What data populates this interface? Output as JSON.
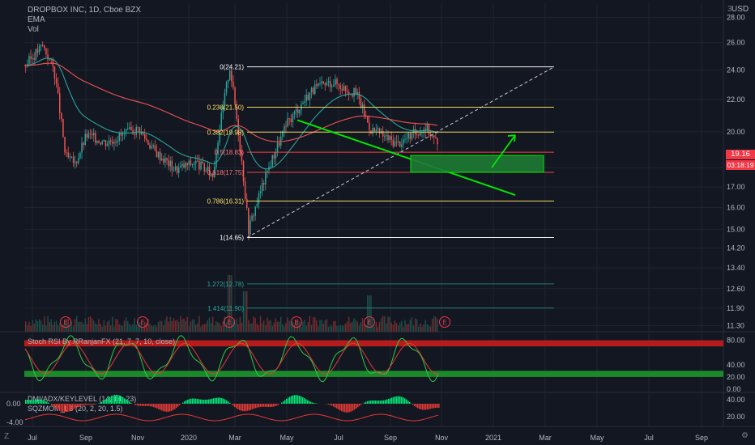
{
  "header": {
    "symbol": "DROPBOX INC, 1D, Cboe BZX",
    "line2": "EMA",
    "line3": "Vol"
  },
  "currency": "USD",
  "corner_labels": {
    "top_right": "3",
    "bottom_left": "Z",
    "bottom_right": "⚙"
  },
  "price_tags": {
    "last": "19.16",
    "countdown": "03:18:19",
    "last_color": "#f23645",
    "countdown_color": "#f23645"
  },
  "colors": {
    "background": "#131722",
    "grid": "#1f2430",
    "candle_up": "#26a69a",
    "candle_down": "#ef5350",
    "ema_fast": "#26a69a",
    "ema_slow": "#ef5350",
    "fib_white": "#ffffff",
    "fib_yellow": "#ffe066",
    "fib_red": "#ff4444",
    "fib_teal": "#26a69a",
    "trend_green": "#00e600",
    "box_fill": "#1d7a33"
  },
  "chart_data": {
    "type": "candlestick",
    "xaxis_ticks": [
      "Jul",
      "Sep",
      "Nov",
      "2020",
      "Mar",
      "May",
      "Jul",
      "Sep",
      "Nov",
      "2021",
      "Mar",
      "May",
      "Jul",
      "Sep"
    ],
    "price_axis": {
      "scale": "log",
      "ylim": [
        11.1,
        29.2
      ],
      "ticks": [
        "28.00",
        "26.00",
        "24.00",
        "22.00",
        "20.00",
        "18.00",
        "17.00",
        "16.00",
        "15.00",
        "14.20",
        "13.40",
        "12.60",
        "11.90",
        "11.30"
      ]
    },
    "price_path_keypoints": [
      {
        "t": "Jul",
        "close": 24.3
      },
      {
        "t": "Jul",
        "close": 25.8
      },
      {
        "t": "Aug",
        "close": 24.0
      },
      {
        "t": "Aug",
        "close": 18.6
      },
      {
        "t": "Sep",
        "close": 18.2
      },
      {
        "t": "Sep",
        "close": 19.8
      },
      {
        "t": "Oct",
        "close": 19.4
      },
      {
        "t": "Nov",
        "close": 20.2
      },
      {
        "t": "Nov",
        "close": 18.9
      },
      {
        "t": "Dec",
        "close": 17.9
      },
      {
        "t": "2020",
        "close": 18.3
      },
      {
        "t": "Feb",
        "close": 17.6
      },
      {
        "t": "Feb",
        "close": 24.2
      },
      {
        "t": "Mar",
        "close": 15.0
      },
      {
        "t": "Apr",
        "close": 17.9
      },
      {
        "t": "May",
        "close": 20.5
      },
      {
        "t": "Jun",
        "close": 22.6
      },
      {
        "t": "Jul",
        "close": 23.2
      },
      {
        "t": "Aug",
        "close": 22.3
      },
      {
        "t": "Aug",
        "close": 20.2
      },
      {
        "t": "Sep",
        "close": 19.3
      },
      {
        "t": "Oct",
        "close": 20.3
      },
      {
        "t": "Oct",
        "close": 19.16
      }
    ],
    "fibonacci": [
      {
        "label": "0(24.21)",
        "ratio": 0,
        "price": 24.21,
        "color": "white"
      },
      {
        "label": "0.236(21.50)",
        "ratio": 0.236,
        "price": 21.5,
        "color": "yellow"
      },
      {
        "label": "0.382(19.98)",
        "ratio": 0.382,
        "price": 19.98,
        "color": "yellow"
      },
      {
        "label": "0.5(18.83)",
        "ratio": 0.5,
        "price": 18.83,
        "color": "red"
      },
      {
        "label": "0.618(17.75)",
        "ratio": 0.618,
        "price": 17.75,
        "color": "red"
      },
      {
        "label": "0.786(16.31)",
        "ratio": 0.786,
        "price": 16.31,
        "color": "yellow"
      },
      {
        "label": "1(14.65)",
        "ratio": 1,
        "price": 14.65,
        "color": "white"
      },
      {
        "label": "1.272(12.78)",
        "ratio": 1.272,
        "price": 12.78,
        "color": "teal"
      },
      {
        "label": "1.414(11.90)",
        "ratio": 1.414,
        "price": 11.9,
        "color": "teal"
      }
    ],
    "earnings_markers": [
      "E",
      "E",
      "E",
      "E",
      "E",
      "E",
      "E"
    ],
    "annotations": [
      {
        "type": "dashed-trendline",
        "from": {
          "t": "Mar 2020",
          "price": 14.65
        },
        "to": {
          "t": "Mar 2021",
          "price": 24.21
        }
      },
      {
        "type": "trendline",
        "from": {
          "t": "May 2020",
          "price": 20.7
        },
        "to": {
          "t": "Dec 2020",
          "price": 16.6
        }
      },
      {
        "type": "box",
        "price_top": 18.65,
        "price_bottom": 17.75
      },
      {
        "type": "arrow",
        "from_price": 18.0,
        "to_price": 19.8
      }
    ],
    "panes": [
      {
        "name": "Stoch RSI By RRanjanFX (21, 7, 7, 10, close)",
        "ylim": [
          0,
          90
        ],
        "ticks": [
          "80.00",
          "40.00",
          "20.00",
          "0.00"
        ],
        "bands": [
          {
            "from": 70,
            "to": 80,
            "color": "red"
          },
          {
            "from": 20,
            "to": 30,
            "color": "green"
          }
        ]
      },
      {
        "name": "DMI/ADX/KEYLEVEL (14, 14, 23)",
        "ticks_right": [
          "40.00",
          "20.00"
        ]
      },
      {
        "name": "SQZMOM_LB (20, 2, 20, 1.5)",
        "ticks_left": [
          "0.00",
          "-4.00"
        ]
      }
    ]
  }
}
